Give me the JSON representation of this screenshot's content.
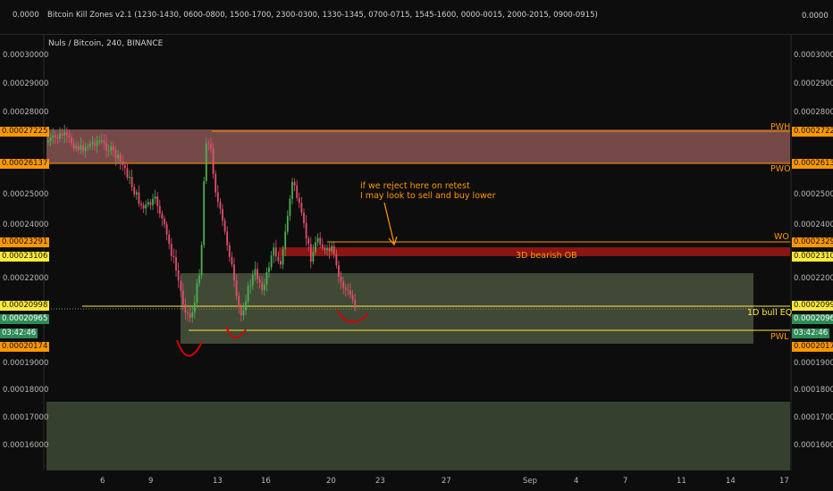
{
  "indicator": {
    "title": "Bitcoin Kill Zones v2.1 (1230-1430, 0600-0800, 1500-1700, 2300-0300, 1330-1345, 0700-0715, 1545-1600, 0000-0015, 2000-2015, 0900-0915)",
    "left_value": "0.0000",
    "right_value": "0.0000"
  },
  "chart": {
    "symbol": "Nuls / Bitcoin, 240, BINANCE",
    "countdown": "03:42:46"
  },
  "colors": {
    "background": "#0d0d0d",
    "up_candle": "#4caf50",
    "down_candle": "#e0506a",
    "premium_zone": "#c87a7a",
    "discount_zone": "#5a6b4a",
    "orange": "#ff9800",
    "yellow": "#ffeb3b",
    "bearish_ob": "#8b1a1a",
    "annotation_red": "#d50000",
    "price_tag_green": "#2e8b57"
  },
  "price_axis": {
    "left_ticks": [
      "0.00030000",
      "0.00029000",
      "0.00028000",
      "0.00025000",
      "0.00024000",
      "0.00022000",
      "0.00019000",
      "0.00018000",
      "0.00017000",
      "0.00016000"
    ],
    "right_ticks": [
      "0.00030000",
      "0.00029000",
      "0.00028000",
      "0.00025000",
      "0.00024000",
      "0.00022000",
      "0.00019000",
      "0.00018000",
      "0.00017000",
      "0.00016000"
    ]
  },
  "levels": [
    {
      "name": "PWH",
      "value": "0.00027225",
      "color": "#ff9800",
      "label": "PWH"
    },
    {
      "name": "PWO",
      "value": "0.00026137",
      "color": "#ff9800",
      "label": "PWO"
    },
    {
      "name": "WO",
      "value": "0.00023291",
      "color": "#ff9800",
      "label": "WO"
    },
    {
      "name": "3D bearish OB",
      "value": "0.00023106",
      "color": "#ffeb3b",
      "label": "3D bearish OB"
    },
    {
      "name": "1D bull EQ",
      "value": "0.00020998",
      "color": "#ffeb3b",
      "label": "1D bull EQ"
    },
    {
      "name": "Last",
      "value": "0.00020965",
      "color": "#2e8b57",
      "label": ""
    },
    {
      "name": "PWL",
      "value": "0.00020174",
      "color": "#ff9800",
      "label": "PWL"
    }
  ],
  "annotations": {
    "note_line1": "if we reject here on retest",
    "note_line2": "I may look to sell and buy lower"
  },
  "time_axis": {
    "labels": [
      "6",
      "9",
      "13",
      "16",
      "20",
      "23",
      "27",
      "Sep",
      "4",
      "7",
      "11",
      "14",
      "17"
    ]
  }
}
